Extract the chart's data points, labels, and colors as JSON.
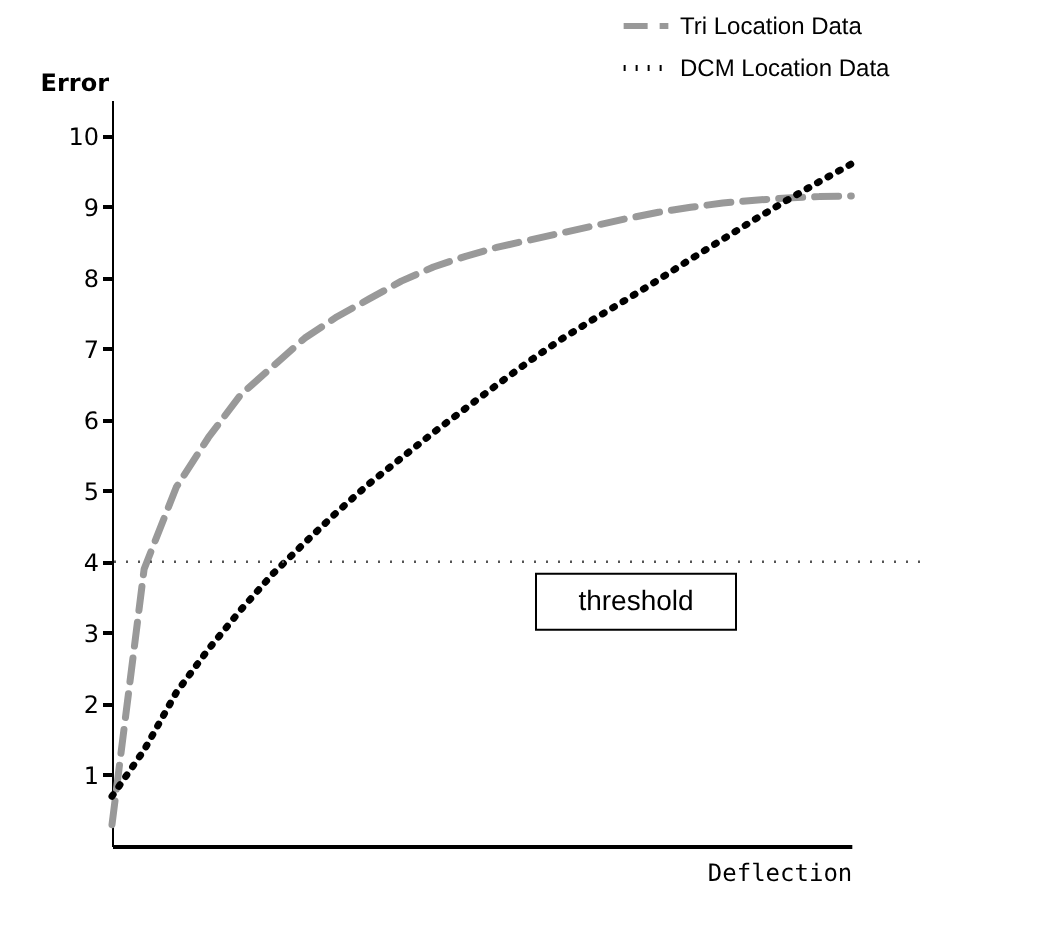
{
  "chart_data": {
    "type": "line",
    "xlabel": "Deflection",
    "ylabel": "Error",
    "categories": [
      null,
      null,
      null,
      null,
      null,
      null,
      null,
      null,
      null,
      null,
      null,
      null,
      null,
      null,
      null,
      null,
      null,
      null,
      null,
      null,
      null,
      null,
      null,
      null
    ],
    "series": [
      {
        "name": "Tri Location Data",
        "color": "#999999",
        "line_style": "dashed",
        "values": [
          0.3,
          3.9,
          5.05,
          5.75,
          6.35,
          6.75,
          7.15,
          7.45,
          7.7,
          7.95,
          8.15,
          8.3,
          8.43,
          8.53,
          8.63,
          8.73,
          8.83,
          8.92,
          8.99,
          9.05,
          9.09,
          9.12,
          9.14,
          9.15
        ]
      },
      {
        "name": "DCM Location Data",
        "color": "#000000",
        "line_style": "dotted",
        "values": [
          0.7,
          1.35,
          2.16,
          2.77,
          3.32,
          3.83,
          4.27,
          4.7,
          5.1,
          5.46,
          5.82,
          6.16,
          6.5,
          6.83,
          7.14,
          7.42,
          7.69,
          7.97,
          8.26,
          8.54,
          8.82,
          9.09,
          9.35,
          9.6
        ]
      }
    ],
    "ylim": [
      0,
      10.5
    ],
    "yticks": [
      1,
      2,
      3,
      4,
      5,
      6,
      7,
      8,
      9,
      10
    ],
    "ref_lines": [
      {
        "axis": "y",
        "value": 4,
        "label": "threshold",
        "color": "#555555",
        "line_style": "dotted"
      }
    ],
    "legend": "top right"
  }
}
